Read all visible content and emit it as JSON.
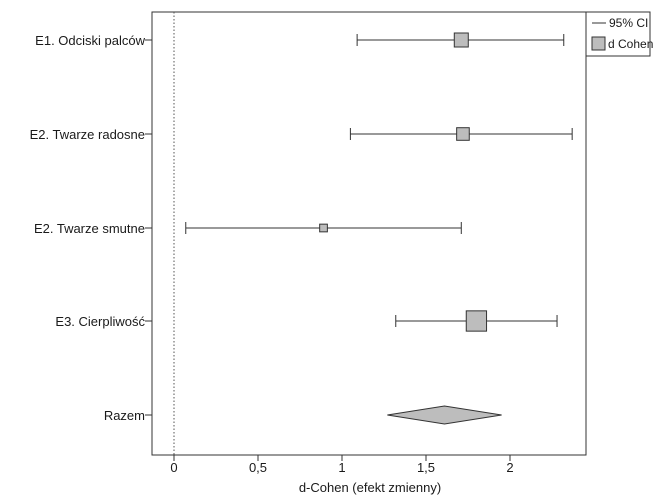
{
  "chart_data": {
    "type": "forest",
    "xlabel": "d-Cohen (efekt zmienny)",
    "xlim": [
      -0.05,
      2.4
    ],
    "x_ticks": [
      {
        "value": 0,
        "label": "0"
      },
      {
        "value": 0.5,
        "label": "0,5"
      },
      {
        "value": 1,
        "label": "1"
      },
      {
        "value": 1.5,
        "label": "1,5"
      },
      {
        "value": 2,
        "label": "2"
      }
    ],
    "reference_line": 0,
    "legend": {
      "placement": "top-right",
      "ci_label": "95% CI",
      "point_label": "d Cohen"
    },
    "studies": [
      {
        "label": "E1. Odciski palców",
        "d": 1.71,
        "ci_low": 1.09,
        "ci_high": 2.32,
        "weight": 1.0
      },
      {
        "label": "E2. Twarze radosne",
        "d": 1.72,
        "ci_low": 1.05,
        "ci_high": 2.37,
        "weight": 0.9
      },
      {
        "label": "E2. Twarze smutne",
        "d": 0.89,
        "ci_low": 0.07,
        "ci_high": 1.71,
        "weight": 0.55
      },
      {
        "label": "E3. Cierpliwość",
        "d": 1.8,
        "ci_low": 1.32,
        "ci_high": 2.28,
        "weight": 1.45
      }
    ],
    "summary": {
      "label": "Razem",
      "d": 1.61,
      "ci_low": 1.27,
      "ci_high": 1.95
    },
    "colors": {
      "marker_fill": "#bdbdbd",
      "stroke": "#333333",
      "reference": "#555555"
    }
  }
}
